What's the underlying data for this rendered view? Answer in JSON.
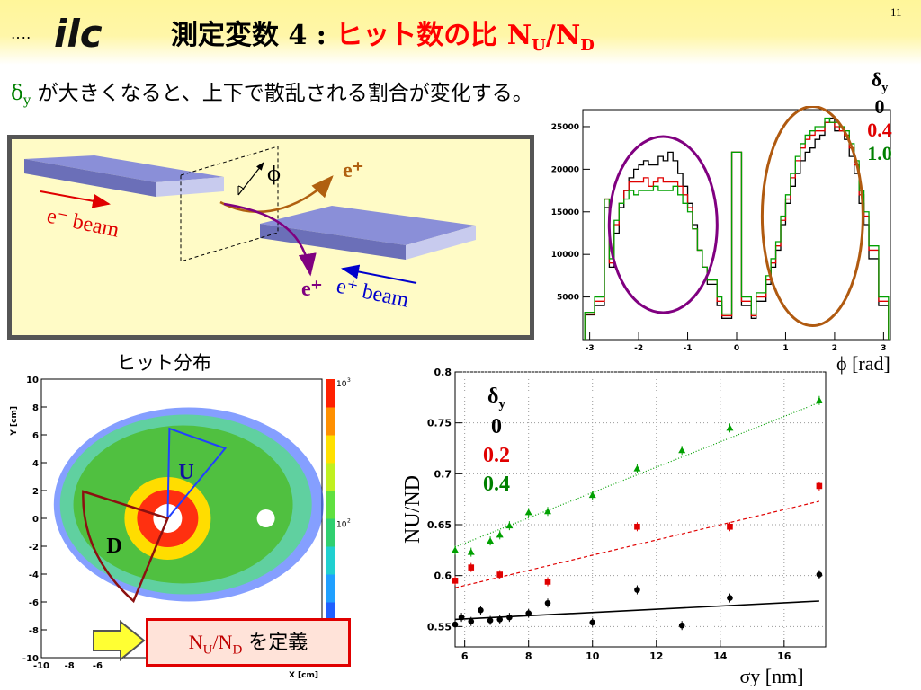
{
  "header": {
    "page_number": "11",
    "dots": "‥‥",
    "logo_text": "ilc",
    "title_part1": "測定変数 4 : ",
    "title_part2": "ヒット数の比 N",
    "title_sub_u": "U",
    "title_slash": "/N",
    "title_sub_d": "D"
  },
  "subtitle": {
    "delta": "δ",
    "sub": "y",
    "text": " が大きくなると、上下で散乱される割合が変化する。"
  },
  "diagram": {
    "e_minus_beam": "e⁻ beam",
    "e_plus_beam": "e⁺ beam",
    "e_plus_top": "e⁺",
    "e_plus_bottom": "e⁺",
    "phi": "ϕ"
  },
  "hist_legend": {
    "title": "δ",
    "title_sub": "y",
    "items": [
      {
        "label": "0",
        "color": "#000000"
      },
      {
        "label": "0.4",
        "color": "#e00000"
      },
      {
        "label": "1.0",
        "color": "#008000"
      }
    ]
  },
  "hist_xlabel": "ϕ [rad]",
  "ratio_legend": {
    "title": "δ",
    "title_sub": "y",
    "items": [
      {
        "label": "0",
        "color": "#000000"
      },
      {
        "label": "0.2",
        "color": "#e00000"
      },
      {
        "label": "0.4",
        "color": "#008000"
      }
    ]
  },
  "hit_map": {
    "title": "ヒット分布",
    "ylabel": "Y [cm]",
    "xlabel": "X [cm]",
    "label_u": "U",
    "label_d": "D",
    "colorbar_top": "10",
    "colorbar_top_exp": "3",
    "colorbar_mid": "10",
    "colorbar_mid_exp": "2"
  },
  "definition": {
    "n": "N",
    "u": "U",
    "slash": "/N",
    "d": "D",
    "text": " を定義"
  },
  "chart_data": [
    {
      "type": "line",
      "title": "",
      "xlabel": "ϕ [rad]",
      "ylabel": "",
      "xlim": [
        -3.14,
        3.14
      ],
      "ylim": [
        0,
        27000
      ],
      "x_ticks": [
        -3,
        -2,
        -1,
        0,
        1,
        2,
        3
      ],
      "y_ticks": [
        5000,
        10000,
        15000,
        20000,
        25000
      ],
      "x_edges": [
        -3.1,
        -2.9,
        -2.7,
        -2.6,
        -2.5,
        -2.4,
        -2.3,
        -2.2,
        -2.1,
        -2.0,
        -1.9,
        -1.8,
        -1.7,
        -1.6,
        -1.5,
        -1.4,
        -1.3,
        -1.2,
        -1.1,
        -1.0,
        -0.9,
        -0.8,
        -0.7,
        -0.6,
        -0.4,
        -0.3,
        -0.1,
        0.1,
        0.3,
        0.4,
        0.6,
        0.7,
        0.8,
        0.9,
        1.0,
        1.1,
        1.2,
        1.3,
        1.4,
        1.5,
        1.6,
        1.7,
        1.8,
        1.9,
        2.0,
        2.1,
        2.2,
        2.3,
        2.4,
        2.5,
        2.6,
        2.7,
        2.9,
        3.1
      ],
      "series": [
        {
          "name": "0",
          "color": "#000000",
          "values": [
            2900,
            4000,
            15500,
            8500,
            12500,
            15500,
            17500,
            19000,
            20000,
            20500,
            21000,
            20500,
            20500,
            21500,
            21000,
            22000,
            21000,
            19500,
            18000,
            16000,
            13500,
            10500,
            8500,
            6500,
            4000,
            2500,
            22000,
            4000,
            2500,
            4500,
            6500,
            8500,
            10500,
            13500,
            16000,
            18000,
            19500,
            21000,
            22000,
            22500,
            23500,
            24000,
            25500,
            26000,
            24500,
            24500,
            23500,
            21500,
            19500,
            16000,
            13500,
            9500,
            4000
          ]
        },
        {
          "name": "0.4",
          "color": "#e00000",
          "values": [
            3000,
            4500,
            16500,
            9000,
            13500,
            16000,
            17500,
            18500,
            18500,
            18500,
            19000,
            18000,
            18500,
            19000,
            18500,
            18500,
            18500,
            18000,
            17000,
            15500,
            13000,
            10500,
            8500,
            7000,
            4500,
            2800,
            22000,
            4500,
            2800,
            5000,
            7000,
            9000,
            11000,
            14000,
            16500,
            19000,
            21000,
            22500,
            23500,
            24000,
            24500,
            24500,
            25500,
            25500,
            25000,
            24500,
            24000,
            22500,
            20500,
            17000,
            14500,
            10500,
            4500
          ]
        },
        {
          "name": "1.0",
          "color": "#00a000",
          "values": [
            3200,
            5000,
            16500,
            9500,
            14000,
            16000,
            16500,
            17500,
            17000,
            17500,
            17500,
            17500,
            18000,
            17500,
            17500,
            17500,
            18000,
            17000,
            16000,
            15000,
            13000,
            10500,
            8500,
            7000,
            5000,
            3000,
            22000,
            5000,
            3000,
            5500,
            7500,
            9500,
            11500,
            14500,
            17000,
            19500,
            21500,
            23000,
            24000,
            24500,
            25000,
            25000,
            26000,
            25500,
            25500,
            25000,
            24500,
            23000,
            21000,
            17500,
            15000,
            11000,
            5000
          ]
        }
      ]
    },
    {
      "type": "scatter",
      "title": "",
      "xlabel": "σy [nm]",
      "ylabel": "NU/ND",
      "xlim": [
        5.7,
        17.3
      ],
      "ylim": [
        0.53,
        0.8
      ],
      "x_ticks": [
        6,
        8,
        10,
        12,
        14,
        16
      ],
      "y_ticks": [
        0.55,
        0.6,
        0.65,
        0.7,
        0.75,
        0.8
      ],
      "series": [
        {
          "name": "0",
          "color": "#000000",
          "marker": "circle",
          "points": [
            [
              5.7,
              0.552
            ],
            [
              5.9,
              0.559
            ],
            [
              6.2,
              0.555
            ],
            [
              6.5,
              0.566
            ],
            [
              6.8,
              0.556
            ],
            [
              7.1,
              0.557
            ],
            [
              7.4,
              0.559
            ],
            [
              8.0,
              0.563
            ],
            [
              8.6,
              0.573
            ],
            [
              10.0,
              0.554
            ],
            [
              11.4,
              0.586
            ],
            [
              12.8,
              0.551
            ],
            [
              14.3,
              0.578
            ],
            [
              17.1,
              0.601
            ]
          ],
          "fit": [
            [
              5.7,
              0.557
            ],
            [
              17.1,
              0.575
            ]
          ]
        },
        {
          "name": "0.2",
          "color": "#e00000",
          "marker": "square",
          "points": [
            [
              5.7,
              0.595
            ],
            [
              6.2,
              0.608
            ],
            [
              7.1,
              0.601
            ],
            [
              8.6,
              0.594
            ],
            [
              11.4,
              0.648
            ],
            [
              14.3,
              0.648
            ],
            [
              17.1,
              0.688
            ]
          ],
          "fit": [
            [
              5.7,
              0.588
            ],
            [
              17.1,
              0.673
            ]
          ]
        },
        {
          "name": "0.4",
          "color": "#00a000",
          "marker": "triangle",
          "points": [
            [
              5.7,
              0.625
            ],
            [
              6.2,
              0.623
            ],
            [
              6.8,
              0.634
            ],
            [
              7.1,
              0.64
            ],
            [
              7.4,
              0.649
            ],
            [
              8.0,
              0.662
            ],
            [
              8.6,
              0.663
            ],
            [
              10.0,
              0.679
            ],
            [
              11.4,
              0.705
            ],
            [
              12.8,
              0.723
            ],
            [
              14.3,
              0.745
            ],
            [
              17.1,
              0.772
            ]
          ],
          "fit": [
            [
              5.7,
              0.628
            ],
            [
              17.1,
              0.77
            ]
          ]
        }
      ]
    }
  ]
}
